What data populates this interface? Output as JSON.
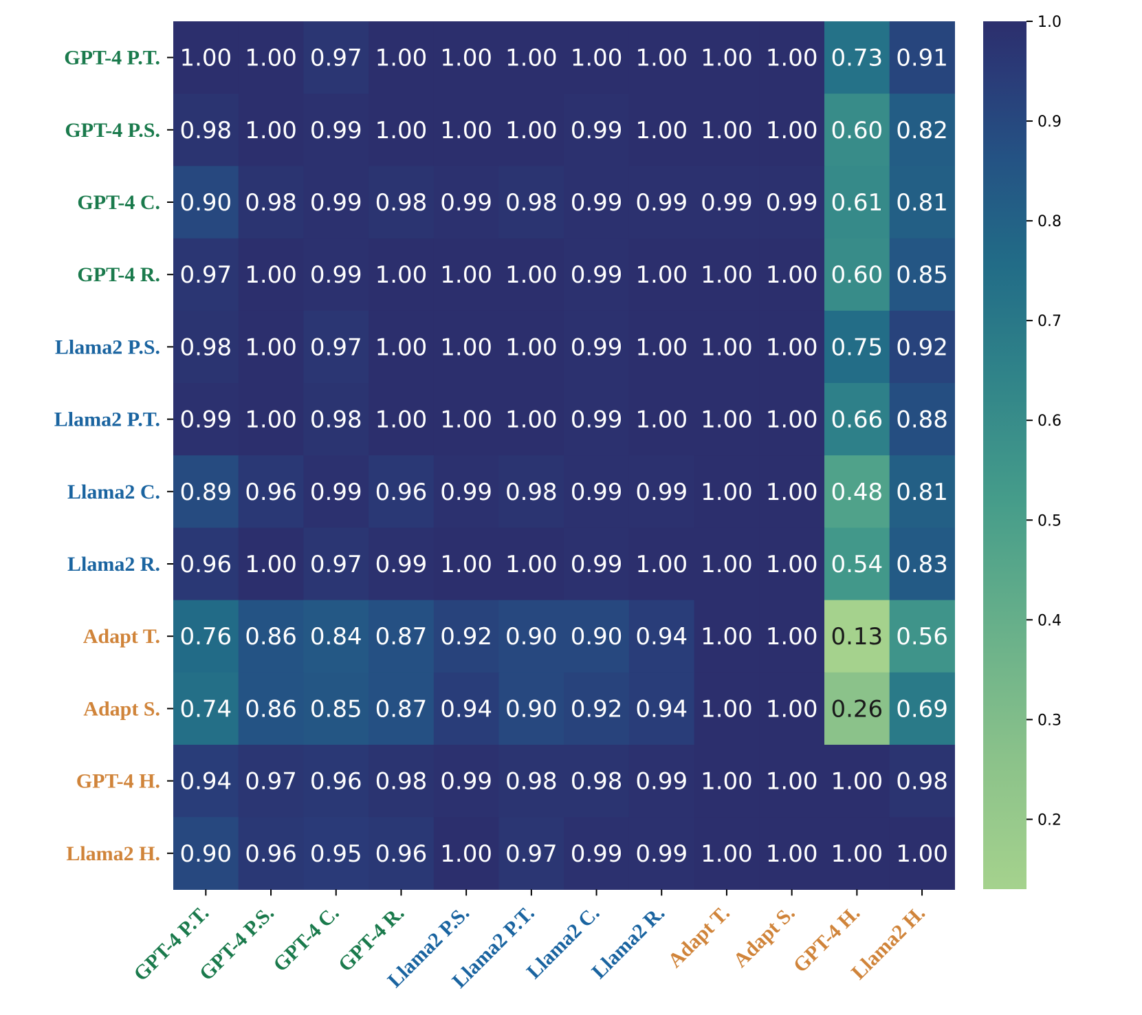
{
  "chart_data": {
    "type": "heatmap",
    "title": "",
    "xlabel": "",
    "ylabel": "",
    "rows": [
      {
        "label": "GPT-4 P.T.",
        "group": "gpt4"
      },
      {
        "label": "GPT-4 P.S.",
        "group": "gpt4"
      },
      {
        "label": "GPT-4 C.",
        "group": "gpt4"
      },
      {
        "label": "GPT-4 R.",
        "group": "gpt4"
      },
      {
        "label": "Llama2 P.S.",
        "group": "llama2"
      },
      {
        "label": "Llama2 P.T.",
        "group": "llama2"
      },
      {
        "label": "Llama2 C.",
        "group": "llama2"
      },
      {
        "label": "Llama2 R.",
        "group": "llama2"
      },
      {
        "label": "Adapt T.",
        "group": "other"
      },
      {
        "label": "Adapt S.",
        "group": "other"
      },
      {
        "label": "GPT-4 H.",
        "group": "other"
      },
      {
        "label": "Llama2 H.",
        "group": "other"
      }
    ],
    "columns": [
      {
        "label": "GPT-4 P.T.",
        "group": "gpt4"
      },
      {
        "label": "GPT-4 P.S.",
        "group": "gpt4"
      },
      {
        "label": "GPT-4 C.",
        "group": "gpt4"
      },
      {
        "label": "GPT-4 R.",
        "group": "gpt4"
      },
      {
        "label": "Llama2 P.S.",
        "group": "llama2"
      },
      {
        "label": "Llama2 P.T.",
        "group": "llama2"
      },
      {
        "label": "Llama2 C.",
        "group": "llama2"
      },
      {
        "label": "Llama2 R.",
        "group": "llama2"
      },
      {
        "label": "Adapt T.",
        "group": "other"
      },
      {
        "label": "Adapt S.",
        "group": "other"
      },
      {
        "label": "GPT-4 H.",
        "group": "other"
      },
      {
        "label": "Llama2 H.",
        "group": "other"
      }
    ],
    "values": [
      [
        1.0,
        1.0,
        0.97,
        1.0,
        1.0,
        1.0,
        1.0,
        1.0,
        1.0,
        1.0,
        0.73,
        0.91
      ],
      [
        0.98,
        1.0,
        0.99,
        1.0,
        1.0,
        1.0,
        0.99,
        1.0,
        1.0,
        1.0,
        0.6,
        0.82
      ],
      [
        0.9,
        0.98,
        0.99,
        0.98,
        0.99,
        0.98,
        0.99,
        0.99,
        0.99,
        0.99,
        0.61,
        0.81
      ],
      [
        0.97,
        1.0,
        0.99,
        1.0,
        1.0,
        1.0,
        0.99,
        1.0,
        1.0,
        1.0,
        0.6,
        0.85
      ],
      [
        0.98,
        1.0,
        0.97,
        1.0,
        1.0,
        1.0,
        0.99,
        1.0,
        1.0,
        1.0,
        0.75,
        0.92
      ],
      [
        0.99,
        1.0,
        0.98,
        1.0,
        1.0,
        1.0,
        0.99,
        1.0,
        1.0,
        1.0,
        0.66,
        0.88
      ],
      [
        0.89,
        0.96,
        0.99,
        0.96,
        0.99,
        0.98,
        0.99,
        0.99,
        1.0,
        1.0,
        0.48,
        0.81
      ],
      [
        0.96,
        1.0,
        0.97,
        0.99,
        1.0,
        1.0,
        0.99,
        1.0,
        1.0,
        1.0,
        0.54,
        0.83
      ],
      [
        0.76,
        0.86,
        0.84,
        0.87,
        0.92,
        0.9,
        0.9,
        0.94,
        1.0,
        1.0,
        0.13,
        0.56
      ],
      [
        0.74,
        0.86,
        0.85,
        0.87,
        0.94,
        0.9,
        0.92,
        0.94,
        1.0,
        1.0,
        0.26,
        0.69
      ],
      [
        0.94,
        0.97,
        0.96,
        0.98,
        0.99,
        0.98,
        0.98,
        0.99,
        1.0,
        1.0,
        1.0,
        0.98
      ],
      [
        0.9,
        0.96,
        0.95,
        0.96,
        1.0,
        0.97,
        0.99,
        0.99,
        1.0,
        1.0,
        1.0,
        1.0
      ]
    ],
    "colorbar": {
      "range": [
        0.13,
        1.0
      ],
      "ticks": [
        0.2,
        0.3,
        0.4,
        0.5,
        0.6,
        0.7,
        0.8,
        0.9,
        1.0
      ],
      "tick_labels": [
        "0.2",
        "0.3",
        "0.4",
        "0.5",
        "0.6",
        "0.7",
        "0.8",
        "0.9",
        "1.0"
      ],
      "colormap": "crest"
    },
    "group_colors": {
      "gpt4": "#1a7a4c",
      "llama2": "#1a64a0",
      "other": "#d0843a"
    },
    "text_colors": {
      "light": "#ffffff",
      "dark": "#1a1a1a"
    },
    "dark_text_threshold": 0.3
  }
}
